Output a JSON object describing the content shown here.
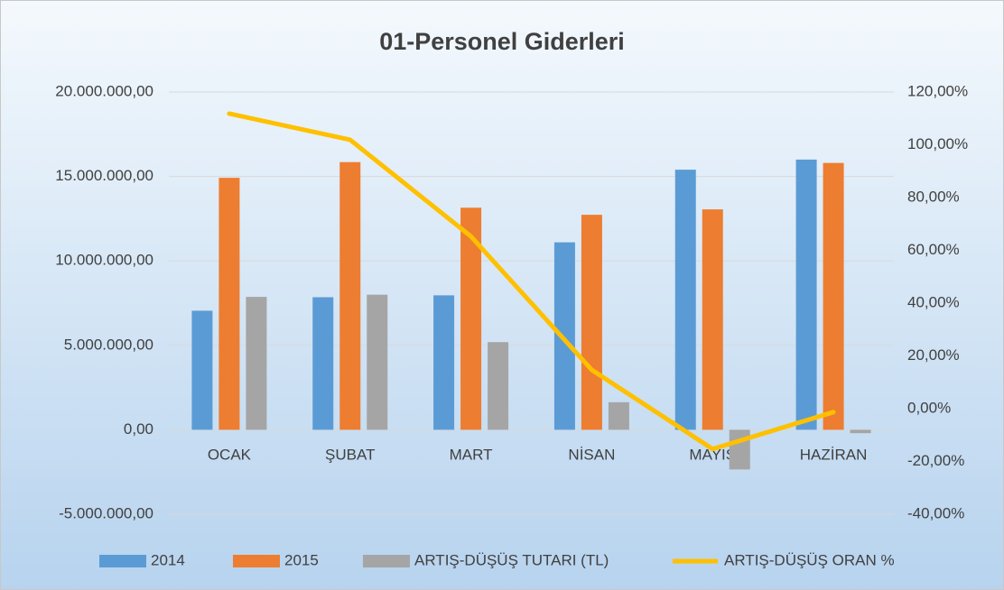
{
  "chart_data": {
    "type": "bar-line",
    "title": "01-Personel Giderleri",
    "categories": [
      "OCAK",
      "ŞUBAT",
      "MART",
      "NİSAN",
      "MAYIS",
      "HAZİRAN"
    ],
    "series": [
      {
        "name": "2014",
        "color": "#5b9bd5",
        "type": "bar",
        "values": [
          7050000,
          7850000,
          7960000,
          11100000,
          15400000,
          16000000
        ]
      },
      {
        "name": "2015",
        "color": "#ed7d31",
        "type": "bar",
        "values": [
          14920000,
          15850000,
          13150000,
          12730000,
          13050000,
          15800000
        ]
      },
      {
        "name": "ARTIŞ-DÜŞÜŞ TUTARI (TL)",
        "color": "#a5a5a5",
        "type": "bar",
        "values": [
          7870000,
          8000000,
          5190000,
          1630000,
          -2350000,
          -200000
        ]
      },
      {
        "name": "ARTIŞ-DÜŞÜŞ ORAN %",
        "color": "#ffc000",
        "type": "line",
        "axis": "y2",
        "values": [
          111.8,
          101.9,
          65.3,
          14.7,
          -15.3,
          -1.3
        ]
      }
    ],
    "ylim": [
      -5000000,
      20000000
    ],
    "yticks": [
      {
        "value": -5000000,
        "label": "-5.000.000,00"
      },
      {
        "value": 0,
        "label": "0,00"
      },
      {
        "value": 5000000,
        "label": "5.000.000,00"
      },
      {
        "value": 10000000,
        "label": "10.000.000,00"
      },
      {
        "value": 15000000,
        "label": "15.000.000,00"
      },
      {
        "value": 20000000,
        "label": "20.000.000,00"
      }
    ],
    "y2lim": [
      -40,
      120
    ],
    "y2ticks": [
      {
        "value": -40,
        "label": "-40,00%"
      },
      {
        "value": -20,
        "label": "-20,00%"
      },
      {
        "value": 0,
        "label": "0,00%"
      },
      {
        "value": 20,
        "label": "20,00%"
      },
      {
        "value": 40,
        "label": "40,00%"
      },
      {
        "value": 60,
        "label": "60,00%"
      },
      {
        "value": 80,
        "label": "80,00%"
      },
      {
        "value": 100,
        "label": "100,00%"
      },
      {
        "value": 120,
        "label": "120,00%"
      }
    ],
    "grid": true
  }
}
